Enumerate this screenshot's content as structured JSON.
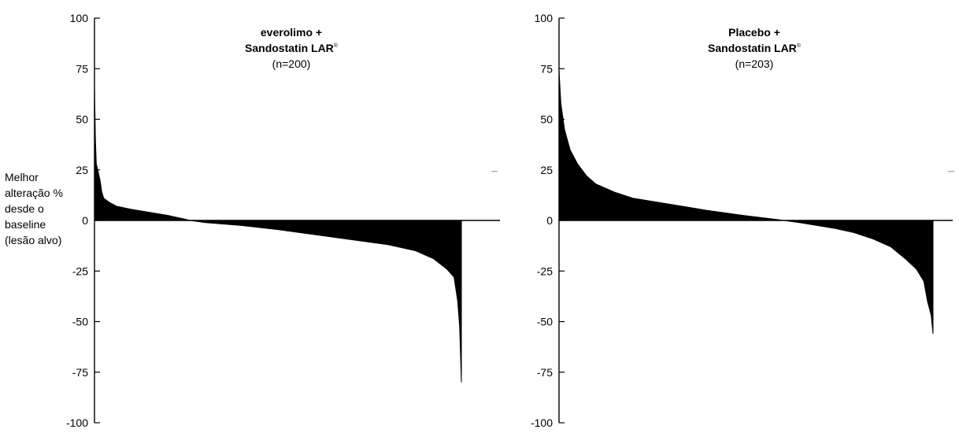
{
  "ylabel_lines": [
    "Melhor",
    "alteração %",
    "desde o",
    "baseline",
    "(lesão alvo)"
  ],
  "chart_data": [
    {
      "type": "waterfall",
      "title_lines": [
        "everolimo +",
        "Sandostatin LAR",
        "(n=200)"
      ],
      "title_superscript": "®",
      "ylabel": "Melhor alteração % desde o baseline (lesão alvo)",
      "ylim": [
        -100,
        100
      ],
      "yticks": [
        100,
        75,
        50,
        25,
        0,
        -25,
        -50,
        -75,
        -100
      ],
      "ytick_labels": [
        "100",
        "75",
        "50",
        "25",
        "0",
        "-25",
        "-50",
        "-75",
        "-100"
      ],
      "n": 200,
      "curve_points": [
        [
          0,
          66
        ],
        [
          0.5,
          40
        ],
        [
          1,
          28
        ],
        [
          2,
          24
        ],
        [
          3,
          20
        ],
        [
          4,
          14
        ],
        [
          5,
          11
        ],
        [
          8,
          9
        ],
        [
          12,
          7
        ],
        [
          20,
          5.5
        ],
        [
          30,
          4
        ],
        [
          40,
          2.5
        ],
        [
          50,
          0.5
        ],
        [
          52,
          0
        ],
        [
          60,
          -1
        ],
        [
          80,
          -2.5
        ],
        [
          100,
          -4.5
        ],
        [
          120,
          -7
        ],
        [
          140,
          -9.5
        ],
        [
          160,
          -12
        ],
        [
          175,
          -15
        ],
        [
          185,
          -19
        ],
        [
          192,
          -24
        ],
        [
          196,
          -28
        ],
        [
          198,
          -40
        ],
        [
          199,
          -52
        ],
        [
          200,
          -80
        ]
      ],
      "grid": false
    },
    {
      "type": "waterfall",
      "title_lines": [
        "Placebo +",
        "Sandostatin LAR",
        "(n=203)"
      ],
      "title_superscript": "®",
      "ylabel": "Melhor alteração % desde o baseline (lesão alvo)",
      "ylim": [
        -100,
        100
      ],
      "yticks": [
        100,
        75,
        50,
        25,
        0,
        -25,
        -50,
        -75,
        -100
      ],
      "ytick_labels": [
        "100",
        "75",
        "50",
        "25",
        "0",
        "-25",
        "-50",
        "-75",
        "-100"
      ],
      "n": 203,
      "curve_points": [
        [
          0,
          74
        ],
        [
          1,
          58
        ],
        [
          3,
          45
        ],
        [
          6,
          35
        ],
        [
          10,
          28
        ],
        [
          15,
          22
        ],
        [
          20,
          18
        ],
        [
          30,
          14
        ],
        [
          40,
          11
        ],
        [
          60,
          8
        ],
        [
          80,
          5
        ],
        [
          100,
          2.5
        ],
        [
          118,
          0.5
        ],
        [
          122,
          0
        ],
        [
          130,
          -1
        ],
        [
          140,
          -2.5
        ],
        [
          150,
          -4
        ],
        [
          160,
          -6
        ],
        [
          170,
          -9
        ],
        [
          180,
          -13
        ],
        [
          188,
          -19
        ],
        [
          194,
          -24
        ],
        [
          198,
          -30
        ],
        [
          200,
          -40
        ],
        [
          202,
          -47
        ],
        [
          203,
          -56
        ]
      ],
      "grid": false
    }
  ]
}
